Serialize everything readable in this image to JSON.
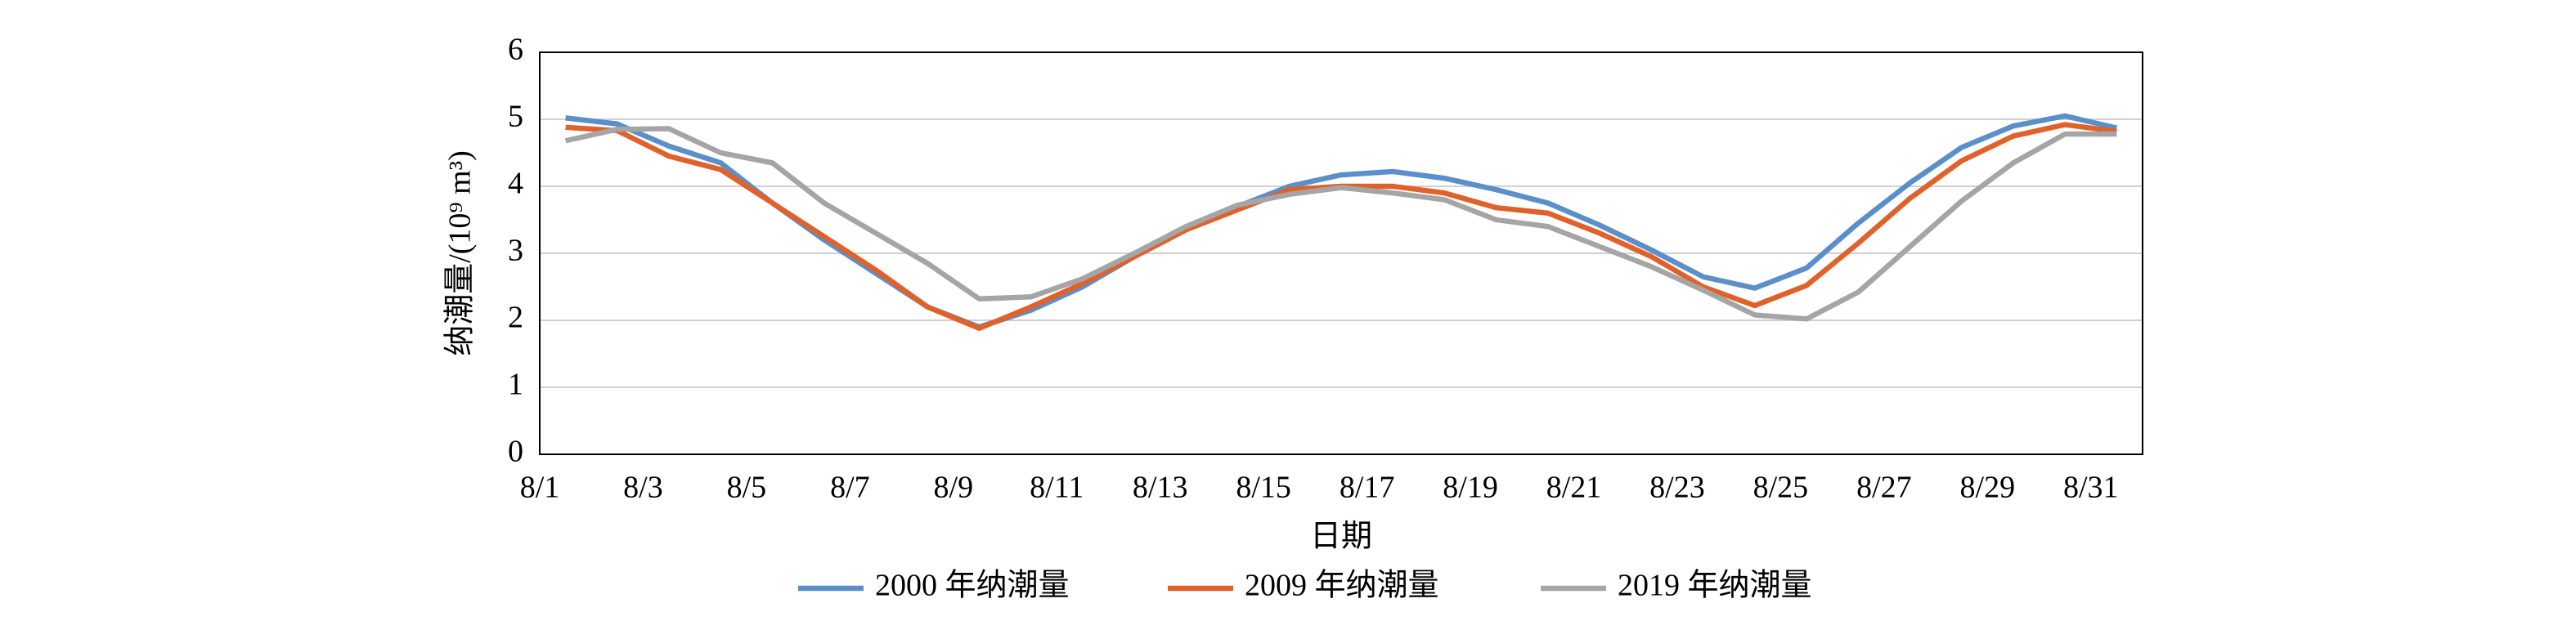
{
  "chart_data": {
    "type": "line",
    "categories": [
      "8/1",
      null,
      "8/3",
      null,
      "8/5",
      null,
      "8/7",
      null,
      "8/9",
      null,
      "8/11",
      null,
      "8/13",
      null,
      "8/15",
      null,
      "8/17",
      null,
      "8/19",
      null,
      "8/21",
      null,
      "8/23",
      null,
      "8/25",
      null,
      "8/27",
      null,
      "8/29",
      null,
      "8/31"
    ],
    "x_label": "日期",
    "y_label": "纳潮量/(10⁹ m³)",
    "ylim": [
      0,
      6
    ],
    "yticks": [
      0,
      1,
      2,
      3,
      4,
      5,
      6
    ],
    "grid": true,
    "legend": "bottom",
    "series": [
      {
        "name": "2000 年纳潮量",
        "color": "#5b8fc9",
        "values": [
          5.02,
          4.93,
          4.6,
          4.35,
          3.75,
          3.2,
          2.7,
          2.2,
          1.9,
          2.15,
          2.5,
          2.95,
          3.35,
          3.7,
          4.0,
          4.17,
          4.22,
          4.12,
          3.95,
          3.75,
          3.42,
          3.05,
          2.65,
          2.48,
          2.78,
          3.45,
          4.05,
          4.58,
          4.9,
          5.05,
          4.87
        ]
      },
      {
        "name": "2009 年纳潮量",
        "color": "#e0622a",
        "values": [
          4.88,
          4.83,
          4.45,
          4.25,
          3.75,
          3.25,
          2.75,
          2.2,
          1.88,
          2.2,
          2.55,
          2.95,
          3.35,
          3.65,
          3.95,
          4.0,
          4.0,
          3.9,
          3.68,
          3.6,
          3.3,
          2.95,
          2.5,
          2.22,
          2.52,
          3.15,
          3.82,
          4.38,
          4.75,
          4.92,
          4.82
        ]
      },
      {
        "name": "2019 年纳潮量",
        "color": "#a5a5a5",
        "values": [
          4.68,
          4.85,
          4.86,
          4.5,
          4.35,
          3.75,
          3.3,
          2.85,
          2.32,
          2.35,
          2.62,
          3.0,
          3.4,
          3.72,
          3.88,
          3.98,
          3.9,
          3.8,
          3.5,
          3.4,
          3.1,
          2.8,
          2.45,
          2.08,
          2.02,
          2.42,
          3.1,
          3.78,
          4.35,
          4.78,
          4.78
        ]
      }
    ]
  }
}
